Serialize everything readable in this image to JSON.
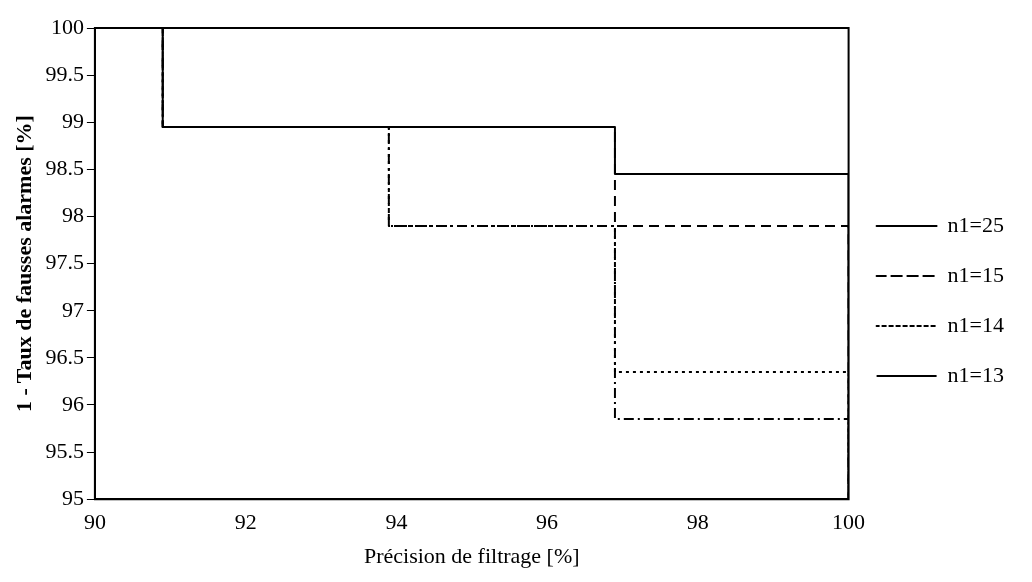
{
  "chart_data": {
    "type": "step",
    "xlabel": "Précision de filtrage [%]",
    "ylabel": "1 - Taux de fausses alarmes [%]",
    "xlim": [
      90,
      100
    ],
    "xticks": [
      90,
      92,
      94,
      96,
      98,
      100
    ],
    "ylim": [
      95,
      100
    ],
    "yticks": [
      95,
      95.5,
      96,
      96.5,
      97,
      97.5,
      98,
      98.5,
      99,
      99.5,
      100
    ],
    "grid": false,
    "legend": "right",
    "marker": "none",
    "series": [
      {
        "name": "n1=25",
        "color": "#000000",
        "line_style": "solid",
        "x": [
          90,
          90.9,
          96.9,
          100
        ],
        "values": [
          100,
          98.95,
          98.45,
          95
        ]
      },
      {
        "name": "n1=15",
        "color": "#000000",
        "line_style": "dashed",
        "x": [
          90,
          90.9,
          96.9,
          100
        ],
        "values": [
          100,
          98.95,
          97.9,
          95
        ]
      },
      {
        "name": "n1=14",
        "color": "#000000",
        "line_style": "dotted",
        "x": [
          90,
          90.9,
          93.9,
          96.9,
          100
        ],
        "values": [
          100,
          98.95,
          97.9,
          96.35,
          95
        ]
      },
      {
        "name": "n1=13",
        "color": "#000000",
        "line_style": "dashdot",
        "x": [
          90,
          90.9,
          93.9,
          96.9,
          100
        ],
        "values": [
          100,
          98.95,
          97.9,
          95.85,
          95
        ]
      }
    ]
  }
}
